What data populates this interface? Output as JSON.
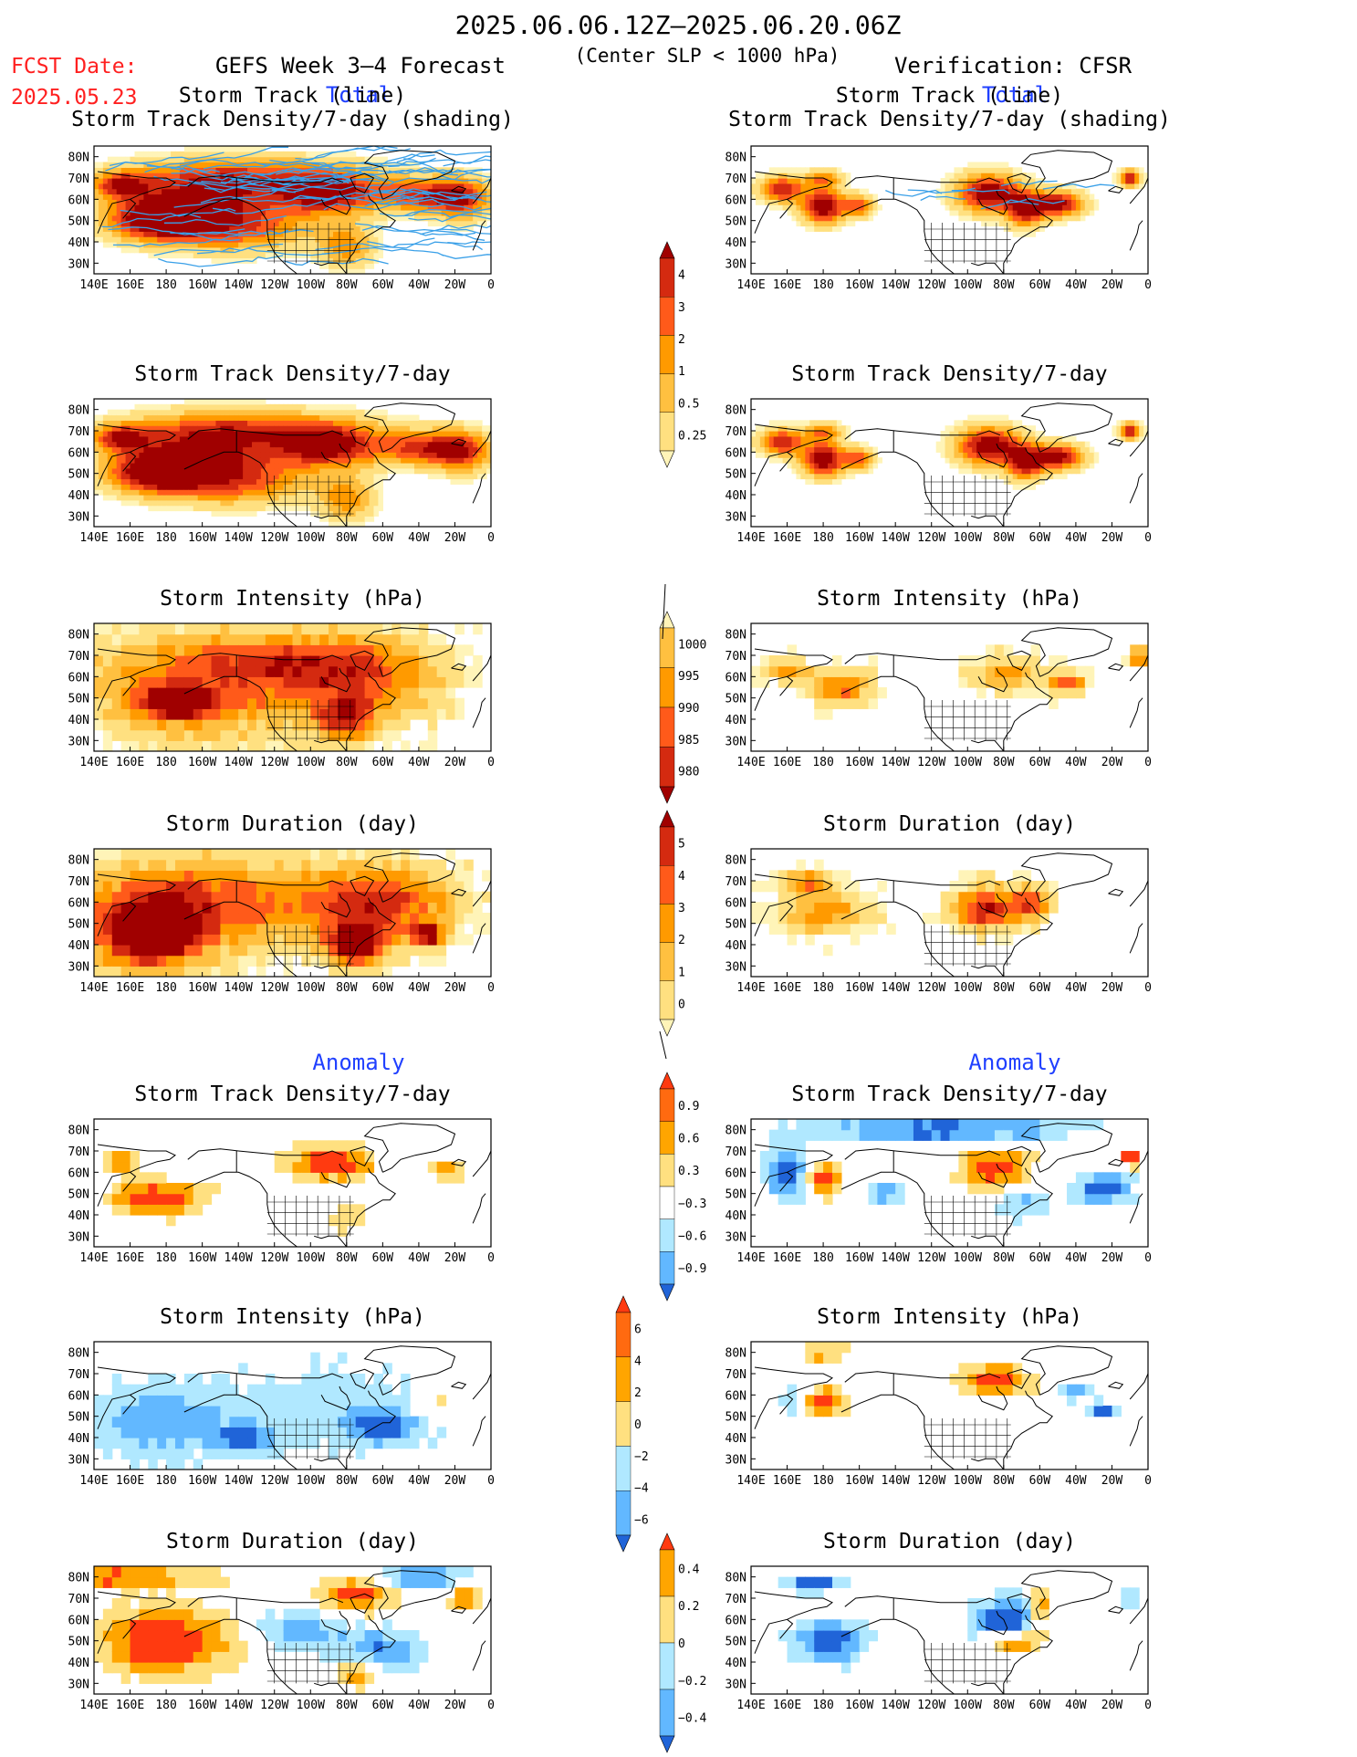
{
  "header": {
    "title": "2025.06.06.12Z–2025.06.20.06Z",
    "subtitle": "(Center SLP < 1000 hPa)",
    "fcst_label": "FCST Date:",
    "fcst_date": "2025.05.23",
    "left_title": "GEFS Week 3–4 Forecast",
    "right_title": "Verification: CFSR",
    "total_label": "Total",
    "anomaly_label": "Anomaly"
  },
  "colors": {
    "accent_red": "#ff2020",
    "section_blue": "#2040ff",
    "orange": "#ffa500",
    "dark_red": "#a00000",
    "blue": "#2064d8",
    "light_blue": "#b0e8ff",
    "pale_yellow": "#ffef9c"
  },
  "map_axis": {
    "lon_ticks": [
      "140E",
      "160E",
      "180",
      "160W",
      "140W",
      "120W",
      "100W",
      "80W",
      "60W",
      "40W",
      "20W",
      "0"
    ],
    "lat_ticks": [
      "80N",
      "70N",
      "60N",
      "50N",
      "40N",
      "30N"
    ]
  },
  "panels": [
    {
      "row": 1,
      "col": "forecast",
      "title": [
        "Storm Track (line)",
        "Storm Track Density/7-day (shading)"
      ],
      "field": "density_total",
      "tracks": true
    },
    {
      "row": 1,
      "col": "verification",
      "title": [
        "Storm Track (line)",
        "Storm Track Density/7-day (shading)"
      ],
      "field": "density_total",
      "tracks": true
    },
    {
      "row": 2,
      "col": "forecast",
      "title": [
        "Storm Track Density/7-day"
      ],
      "field": "density_total"
    },
    {
      "row": 2,
      "col": "verification",
      "title": [
        "Storm Track Density/7-day"
      ],
      "field": "density_total"
    },
    {
      "row": 3,
      "col": "forecast",
      "title": [
        "Storm Intensity (hPa)"
      ],
      "field": "intensity_total"
    },
    {
      "row": 3,
      "col": "verification",
      "title": [
        "Storm Intensity (hPa)"
      ],
      "field": "intensity_total"
    },
    {
      "row": 4,
      "col": "forecast",
      "title": [
        "Storm Duration (day)"
      ],
      "field": "duration_total"
    },
    {
      "row": 4,
      "col": "verification",
      "title": [
        "Storm Duration (day)"
      ],
      "field": "duration_total"
    },
    {
      "row": 5,
      "col": "forecast",
      "title": [
        "Storm Track Density/7-day"
      ],
      "field": "density_anom"
    },
    {
      "row": 5,
      "col": "verification",
      "title": [
        "Storm Track Density/7-day"
      ],
      "field": "density_anom"
    },
    {
      "row": 6,
      "col": "forecast",
      "title": [
        "Storm Intensity (hPa)"
      ],
      "field": "intensity_anom"
    },
    {
      "row": 6,
      "col": "verification",
      "title": [
        "Storm Intensity (hPa)"
      ],
      "field": "intensity_anom"
    },
    {
      "row": 7,
      "col": "forecast",
      "title": [
        "Storm Duration (day)"
      ],
      "field": "duration_anom"
    },
    {
      "row": 7,
      "col": "verification",
      "title": [
        "Storm Duration (day)"
      ],
      "field": "duration_anom"
    }
  ],
  "colorbars": [
    {
      "id": "density_total",
      "labels": [
        "4",
        "3",
        "2",
        "1",
        "0.5",
        "0.25"
      ],
      "colors": [
        "#a00000",
        "#d42a10",
        "#ff5a1a",
        "#ff9a00",
        "#ffc040",
        "#ffe080",
        "#fff4b8"
      ]
    },
    {
      "id": "intensity_total",
      "labels": [
        "1000",
        "995",
        "990",
        "985",
        "980"
      ],
      "colors": [
        "#fff4b8",
        "#ffc040",
        "#ff9a00",
        "#ff5a1a",
        "#d42a10",
        "#a00000"
      ]
    },
    {
      "id": "duration_total",
      "labels": [
        "5",
        "4",
        "3",
        "2",
        "1",
        "0"
      ],
      "colors": [
        "#a00000",
        "#d42a10",
        "#ff5a1a",
        "#ff9a00",
        "#ffc040",
        "#ffe080",
        "#fff4b8"
      ]
    },
    {
      "id": "density_anom",
      "labels": [
        "0.9",
        "0.6",
        "0.3",
        "−0.3",
        "−0.6",
        "−0.9"
      ],
      "colors": [
        "#ff3a10",
        "#ff6a10",
        "#ffa500",
        "#ffe080",
        "#ffffff",
        "#b0e8ff",
        "#62b8ff",
        "#2064d8"
      ]
    },
    {
      "id": "intensity_anom",
      "labels": [
        "6",
        "4",
        "2",
        "0",
        "−2",
        "−4",
        "−6"
      ],
      "colors": [
        "#ff3a10",
        "#ff6a10",
        "#ffa500",
        "#ffe080",
        "#b0e8ff",
        "#62b8ff",
        "#2064d8"
      ]
    },
    {
      "id": "duration_anom",
      "labels": [
        "0.4",
        "0.2",
        "0",
        "−0.2",
        "−0.4"
      ],
      "colors": [
        "#ff3a10",
        "#ffa500",
        "#ffe080",
        "#b0e8ff",
        "#62b8ff",
        "#2064d8"
      ]
    }
  ]
}
